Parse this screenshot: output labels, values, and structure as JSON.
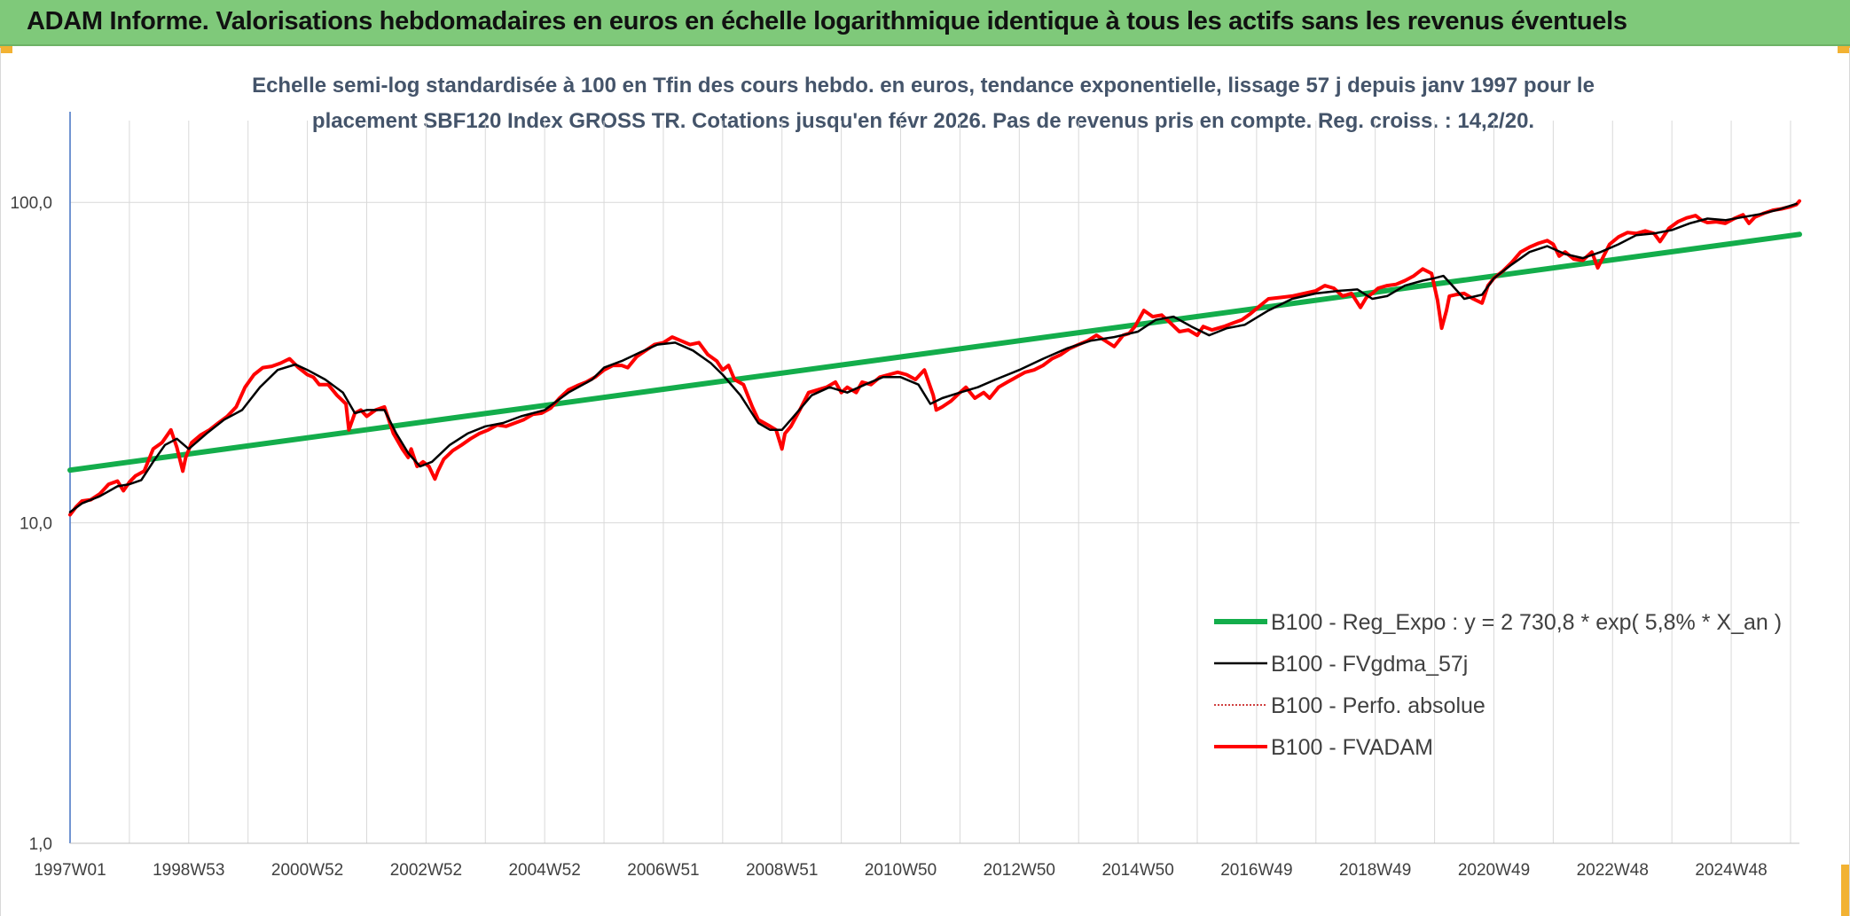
{
  "header": {
    "title": "ADAM Informe. Valorisations hebdomadaires en euros en échelle logarithmique identique à tous les actifs sans les revenus éventuels"
  },
  "colors": {
    "title_bar": "#7fc97a",
    "corner_accent": "#f2b233",
    "subtitle": "#44546a",
    "regression": "#13ad4b",
    "smoothed": "#000000",
    "perfo_absolue": "#c00000",
    "fvadam": "#ff0000",
    "gridline": "#d9d9d9"
  },
  "chart_data": {
    "type": "line",
    "subtitle_lines": [
      "Echelle semi-log standardisée à 100 en Tfin des cours hebdo. en euros, tendance exponentielle, lissage 57 j depuis janv 1997 pour le",
      "placement SBF120 Index GROSS TR. Cotations jusqu'en févr 2026. Pas de revenus pris en compte. Reg. croiss. : 14,2/20."
    ],
    "y_scale": "log",
    "ylim": [
      1,
      180
    ],
    "y_ticks": [
      {
        "value": 1,
        "label": "1,0"
      },
      {
        "value": 10,
        "label": "10,0"
      },
      {
        "value": 100,
        "label": "100,0"
      }
    ],
    "xlim": [
      1997.0,
      2026.15
    ],
    "x_ticks": [
      {
        "value": 1997.0,
        "label": "1997W01"
      },
      {
        "value": 1999.0,
        "label": "1998W53"
      },
      {
        "value": 2001.0,
        "label": "2000W52"
      },
      {
        "value": 2003.0,
        "label": "2002W52"
      },
      {
        "value": 2005.0,
        "label": "2004W52"
      },
      {
        "value": 2007.0,
        "label": "2006W51"
      },
      {
        "value": 2009.0,
        "label": "2008W51"
      },
      {
        "value": 2011.0,
        "label": "2010W50"
      },
      {
        "value": 2013.0,
        "label": "2012W50"
      },
      {
        "value": 2015.0,
        "label": "2014W50"
      },
      {
        "value": 2017.0,
        "label": "2016W49"
      },
      {
        "value": 2019.0,
        "label": "2018W49"
      },
      {
        "value": 2021.0,
        "label": "2020W49"
      },
      {
        "value": 2023.0,
        "label": "2022W48"
      },
      {
        "value": 2025.0,
        "label": "2024W48"
      }
    ],
    "grid_vertical_step_years": 1,
    "grid": true,
    "legend_position": "bottom-right",
    "series": [
      {
        "key": "regression",
        "name": "B100 - Reg_Expo : y = 2 730,8 * exp( 5,8% *  X_an )",
        "style": "thick",
        "x": [
          1997.0,
          2026.15
        ],
        "y": [
          14.6,
          79.5
        ]
      },
      {
        "key": "smoothed",
        "name": "B100 - FVgdma_57j",
        "style": "solid-thin",
        "x": [
          1997.0,
          1997.2,
          1997.5,
          1997.8,
          1998.0,
          1998.2,
          1998.4,
          1998.6,
          1998.8,
          1999.0,
          1999.3,
          1999.6,
          1999.9,
          2000.2,
          2000.5,
          2000.8,
          2001.0,
          2001.3,
          2001.6,
          2001.8,
          2002.0,
          2002.3,
          2002.5,
          2002.7,
          2002.9,
          2003.1,
          2003.4,
          2003.7,
          2004.0,
          2004.3,
          2004.6,
          2005.0,
          2005.4,
          2005.8,
          2006.0,
          2006.3,
          2006.6,
          2006.9,
          2007.2,
          2007.5,
          2007.8,
          2008.0,
          2008.3,
          2008.6,
          2008.8,
          2009.0,
          2009.2,
          2009.5,
          2009.8,
          2010.1,
          2010.4,
          2010.7,
          2011.0,
          2011.3,
          2011.5,
          2011.7,
          2012.0,
          2012.3,
          2012.6,
          2013.0,
          2013.4,
          2013.8,
          2014.2,
          2014.6,
          2015.0,
          2015.3,
          2015.6,
          2015.9,
          2016.2,
          2016.5,
          2016.8,
          2017.2,
          2017.6,
          2018.0,
          2018.4,
          2018.7,
          2018.95,
          2019.2,
          2019.5,
          2019.8,
          2020.0,
          2020.15,
          2020.3,
          2020.5,
          2020.8,
          2021.0,
          2021.3,
          2021.6,
          2021.9,
          2022.2,
          2022.5,
          2022.8,
          2023.1,
          2023.4,
          2023.7,
          2024.0,
          2024.3,
          2024.6,
          2024.9,
          2025.2,
          2025.5,
          2025.8,
          2026.1
        ],
        "y": [
          10.8,
          11.5,
          12.1,
          13.0,
          13.2,
          13.6,
          15.5,
          17.5,
          18.3,
          17.0,
          19.0,
          21.0,
          22.5,
          26.5,
          30.0,
          31.2,
          30.0,
          28.0,
          25.5,
          22.0,
          22.5,
          22.5,
          19.0,
          16.5,
          15.0,
          15.5,
          17.5,
          19.0,
          20.0,
          20.5,
          21.5,
          22.5,
          25.5,
          28.0,
          30.5,
          32.0,
          34.0,
          36.0,
          36.5,
          34.5,
          31.5,
          29.0,
          25.0,
          20.5,
          19.5,
          19.5,
          21.5,
          25.0,
          26.5,
          25.5,
          27.0,
          28.5,
          28.5,
          27.0,
          23.5,
          24.5,
          25.5,
          26.5,
          28.0,
          30.0,
          32.5,
          35.0,
          37.0,
          38.0,
          39.5,
          43.0,
          44.0,
          41.0,
          38.5,
          40.5,
          41.5,
          46.0,
          50.0,
          52.0,
          53.0,
          53.5,
          50.0,
          51.0,
          55.0,
          57.0,
          58.0,
          59.0,
          55.0,
          50.0,
          51.5,
          58.0,
          64.0,
          70.0,
          73.0,
          69.0,
          67.0,
          70.0,
          74.0,
          79.0,
          80.0,
          82.0,
          86.0,
          89.0,
          88.0,
          90.0,
          92.0,
          95.0,
          99.0
        ]
      },
      {
        "key": "perfo_absolue",
        "name": "B100 - Perfo. absolue",
        "style": "dotted",
        "x": [],
        "y": []
      },
      {
        "key": "fvadam",
        "name": "B100 - FVADAM",
        "style": "thick-red",
        "x": [
          1997.0,
          1997.1,
          1997.2,
          1997.35,
          1997.5,
          1997.65,
          1997.8,
          1997.9,
          1998.0,
          1998.1,
          1998.25,
          1998.4,
          1998.55,
          1998.7,
          1998.8,
          1998.9,
          1998.95,
          1999.05,
          1999.2,
          1999.35,
          1999.5,
          1999.65,
          1999.8,
          1999.95,
          2000.1,
          2000.25,
          2000.4,
          2000.55,
          2000.7,
          2000.85,
          2001.0,
          2001.1,
          2001.2,
          2001.35,
          2001.5,
          2001.65,
          2001.7,
          2001.8,
          2001.9,
          2002.0,
          2002.15,
          2002.3,
          2002.45,
          2002.6,
          2002.7,
          2002.75,
          2002.85,
          2002.95,
          2003.05,
          2003.15,
          2003.2,
          2003.3,
          2003.45,
          2003.6,
          2003.75,
          2003.9,
          2004.05,
          2004.2,
          2004.35,
          2004.5,
          2004.65,
          2004.8,
          2004.95,
          2005.1,
          2005.25,
          2005.4,
          2005.55,
          2005.7,
          2005.85,
          2006.0,
          2006.15,
          2006.3,
          2006.4,
          2006.55,
          2006.7,
          2006.85,
          2007.0,
          2007.15,
          2007.3,
          2007.45,
          2007.6,
          2007.75,
          2007.9,
          2008.0,
          2008.1,
          2008.2,
          2008.35,
          2008.5,
          2008.6,
          2008.7,
          2008.8,
          2008.9,
          2009.0,
          2009.05,
          2009.15,
          2009.3,
          2009.45,
          2009.6,
          2009.75,
          2009.9,
          2010.0,
          2010.1,
          2010.25,
          2010.35,
          2010.5,
          2010.65,
          2010.8,
          2010.95,
          2011.1,
          2011.25,
          2011.4,
          2011.55,
          2011.6,
          2011.7,
          2011.85,
          2012.0,
          2012.1,
          2012.25,
          2012.4,
          2012.5,
          2012.65,
          2012.8,
          2012.95,
          2013.1,
          2013.25,
          2013.4,
          2013.55,
          2013.7,
          2013.85,
          2014.0,
          2014.15,
          2014.3,
          2014.45,
          2014.6,
          2014.75,
          2014.85,
          2014.95,
          2015.1,
          2015.25,
          2015.4,
          2015.55,
          2015.7,
          2015.85,
          2016.0,
          2016.1,
          2016.25,
          2016.45,
          2016.6,
          2016.75,
          2016.9,
          2017.05,
          2017.2,
          2017.4,
          2017.6,
          2017.8,
          2018.0,
          2018.15,
          2018.3,
          2018.45,
          2018.6,
          2018.75,
          2018.85,
          2018.95,
          2019.05,
          2019.2,
          2019.35,
          2019.5,
          2019.65,
          2019.8,
          2019.95,
          2020.05,
          2020.12,
          2020.2,
          2020.25,
          2020.35,
          2020.5,
          2020.65,
          2020.8,
          2020.9,
          2021.0,
          2021.15,
          2021.3,
          2021.45,
          2021.6,
          2021.75,
          2021.9,
          2022.0,
          2022.1,
          2022.2,
          2022.35,
          2022.5,
          2022.65,
          2022.75,
          2022.85,
          2022.95,
          2023.1,
          2023.25,
          2023.4,
          2023.55,
          2023.7,
          2023.8,
          2023.95,
          2024.1,
          2024.25,
          2024.4,
          2024.5,
          2024.6,
          2024.75,
          2024.9,
          2025.05,
          2025.2,
          2025.3,
          2025.4,
          2025.55,
          2025.7,
          2025.85,
          2026.0,
          2026.1,
          2026.15
        ],
        "y": [
          10.6,
          11.2,
          11.7,
          11.8,
          12.3,
          13.2,
          13.5,
          12.6,
          13.4,
          14.0,
          14.5,
          17.0,
          17.8,
          19.5,
          17.2,
          14.5,
          16.0,
          17.8,
          18.8,
          19.5,
          20.5,
          21.5,
          23.0,
          26.5,
          29.0,
          30.5,
          30.8,
          31.5,
          32.5,
          30.5,
          29.0,
          28.5,
          27.0,
          27.0,
          25.0,
          23.5,
          19.5,
          22.0,
          22.5,
          21.5,
          22.5,
          23.0,
          19.0,
          17.0,
          16.0,
          17.0,
          15.0,
          15.5,
          15.0,
          13.7,
          14.5,
          15.8,
          16.8,
          17.5,
          18.3,
          19.0,
          19.5,
          20.2,
          20.0,
          20.5,
          21.0,
          21.8,
          22.0,
          22.8,
          24.5,
          26.0,
          26.8,
          27.5,
          28.5,
          30.0,
          31.0,
          31.0,
          30.5,
          33.0,
          34.5,
          36.0,
          36.5,
          38.0,
          37.0,
          36.0,
          36.5,
          33.5,
          32.0,
          30.0,
          31.0,
          28.0,
          27.0,
          23.0,
          21.0,
          20.5,
          20.0,
          19.5,
          17.0,
          19.0,
          20.0,
          22.5,
          25.5,
          26.0,
          26.5,
          27.5,
          25.5,
          26.5,
          25.5,
          27.5,
          27.0,
          28.5,
          29.0,
          29.5,
          29.0,
          28.0,
          30.0,
          25.0,
          22.5,
          23.0,
          24.0,
          25.5,
          26.5,
          24.5,
          25.5,
          24.5,
          26.5,
          27.5,
          28.5,
          29.5,
          30.0,
          31.0,
          32.5,
          33.5,
          35.0,
          36.0,
          37.0,
          38.5,
          37.0,
          35.5,
          38.5,
          39.0,
          41.0,
          46.0,
          44.0,
          44.5,
          42.0,
          39.5,
          40.0,
          38.5,
          41.0,
          40.0,
          41.0,
          42.0,
          43.0,
          45.0,
          47.5,
          50.0,
          50.5,
          51.0,
          52.0,
          53.0,
          55.0,
          54.0,
          51.0,
          52.0,
          47.0,
          50.5,
          52.0,
          54.0,
          55.0,
          55.5,
          57.0,
          59.0,
          62.0,
          60.0,
          49.5,
          40.5,
          46.0,
          51.0,
          51.5,
          52.0,
          50.0,
          48.5,
          55.0,
          58.0,
          61.0,
          65.0,
          70.0,
          72.5,
          74.5,
          76.0,
          74.0,
          68.0,
          70.0,
          66.5,
          66.0,
          70.0,
          62.5,
          68.0,
          74.0,
          78.0,
          80.5,
          80.0,
          81.5,
          80.0,
          75.5,
          83.0,
          87.0,
          89.5,
          91.0,
          88.0,
          86.5,
          87.0,
          86.0,
          89.0,
          91.5,
          86.0,
          90.0,
          92.5,
          94.5,
          95.5,
          97.0,
          98.5,
          101.0
        ]
      }
    ]
  }
}
